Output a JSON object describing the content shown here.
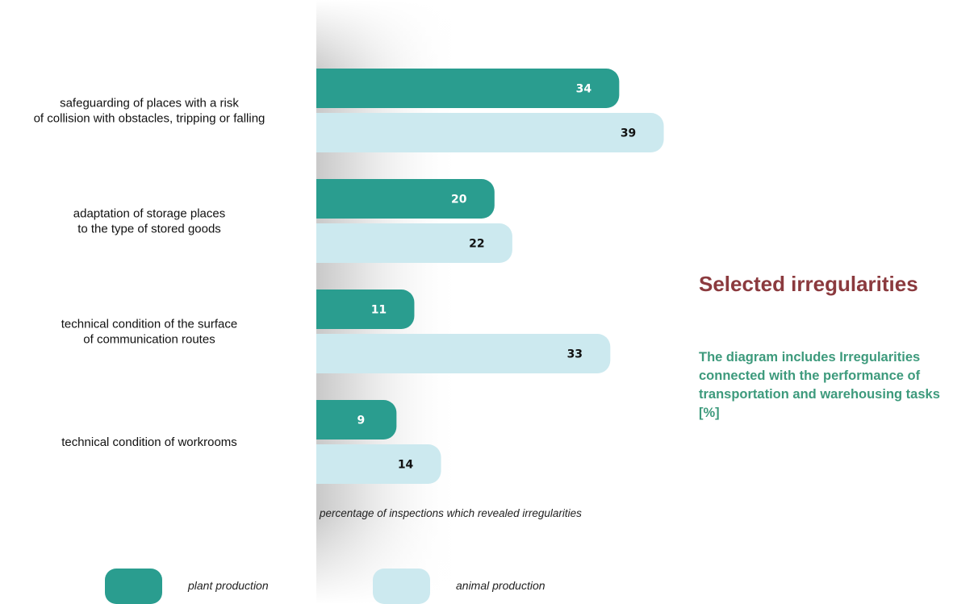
{
  "chart_data": {
    "type": "bar",
    "orientation": "horizontal",
    "categories": [
      [
        "safeguarding of places with a risk",
        "of collision with obstacles, tripping or falling"
      ],
      [
        "adaptation of storage places",
        "to the type of stored goods"
      ],
      [
        "technical condition of the surface",
        "of communication routes"
      ],
      [
        "technical condition of workrooms"
      ]
    ],
    "series": [
      {
        "name": "plant production",
        "color": "#2a9d8f",
        "label_color": "#ffffff",
        "values": [
          34,
          20,
          11,
          9
        ]
      },
      {
        "name": "animal production",
        "color": "#cce9ef",
        "label_color": "#111111",
        "values": [
          39,
          22,
          33,
          14
        ]
      }
    ],
    "xlabel": "percentage of inspections which revealed irregularities",
    "ylabel": "",
    "title": "",
    "grid": false,
    "legend_position": "bottom"
  },
  "side_panel": {
    "title": "Selected irregularities",
    "description": "The diagram includes Irregularities connected with the performance of transportation and warehousing tasks [%]"
  }
}
